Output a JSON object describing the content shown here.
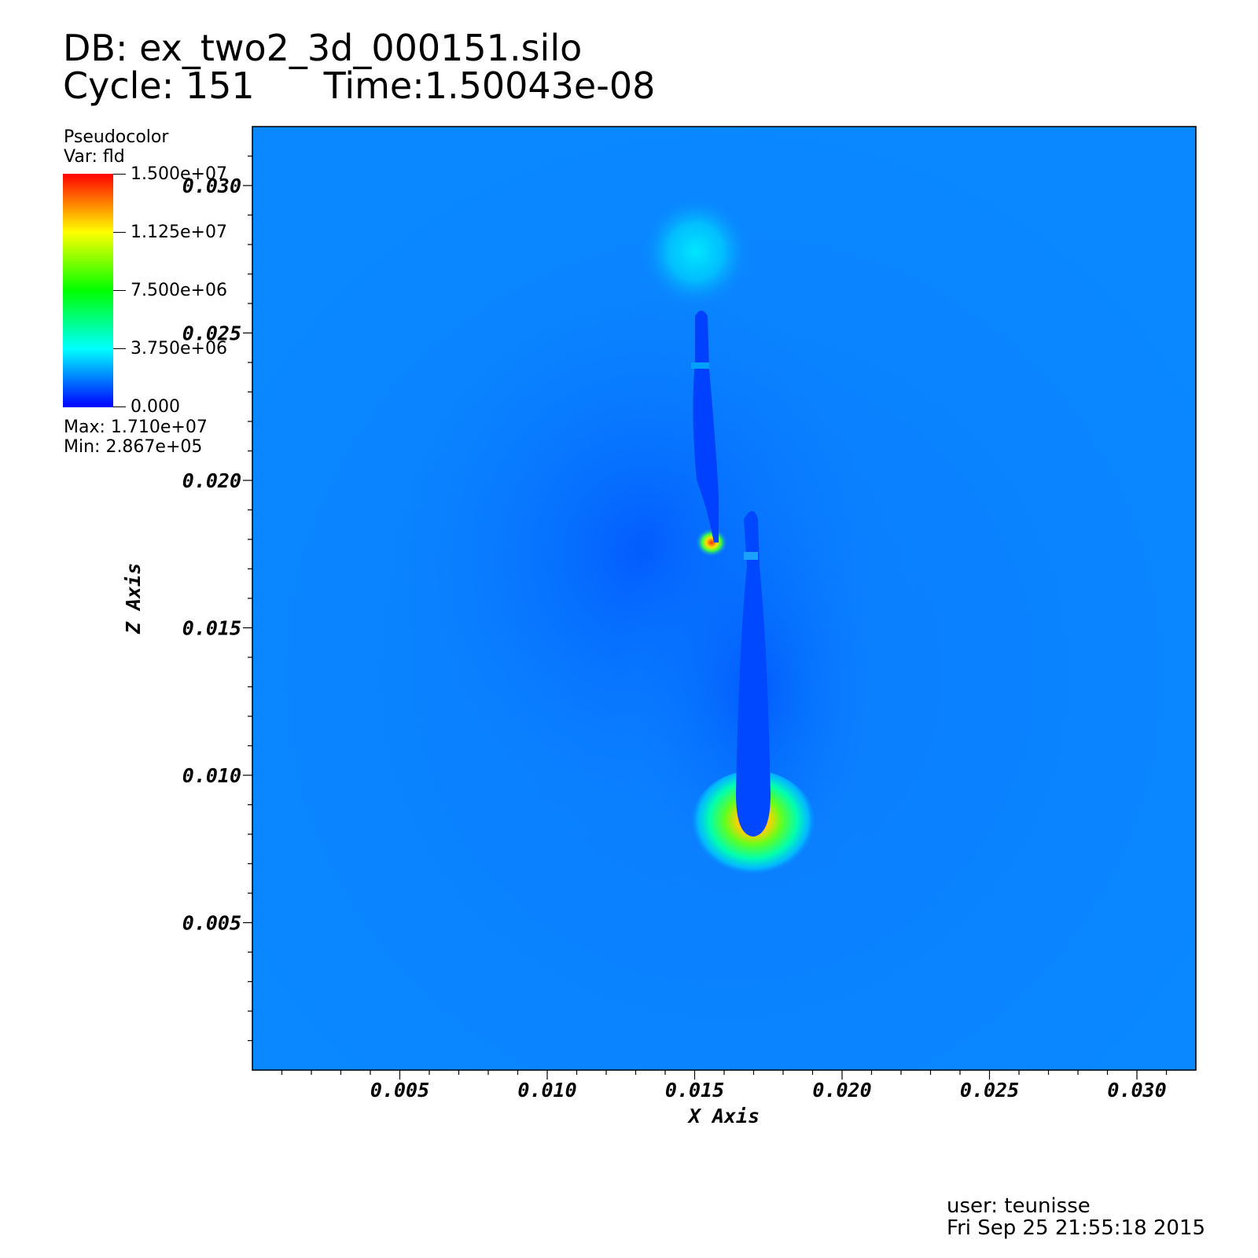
{
  "header": {
    "db_label": "DB: ex_two2_3d_000151.silo",
    "cycle_label": "Cycle: 151",
    "time_label": "Time:1.50043e-08"
  },
  "legend": {
    "plot_type": "Pseudocolor",
    "var_label": "Var: fld",
    "max_label": "Max:  1.710e+07",
    "min_label": "Min:  2.867e+05",
    "ticks": [
      "1.500e+07",
      "1.125e+07",
      "7.500e+06",
      "3.750e+06",
      "0.000"
    ],
    "colormap": [
      "#ff0000",
      "#ff8000",
      "#ffff00",
      "#00ff00",
      "#00ffff",
      "#0080ff",
      "#0000ff"
    ]
  },
  "footer": {
    "user_label": "user: teunisse",
    "date_label": "Fri Sep 25 21:55:18 2015"
  },
  "chart_data": {
    "type": "heatmap",
    "title": "",
    "variable": "fld",
    "xlabel": "X Axis",
    "ylabel": "Z Axis",
    "xlim": [
      0.0,
      0.032
    ],
    "ylim": [
      0.0,
      0.032
    ],
    "x_ticks": [
      "0.005",
      "0.010",
      "0.015",
      "0.020",
      "0.025",
      "0.030"
    ],
    "x_tick_values": [
      0.005,
      0.01,
      0.015,
      0.02,
      0.025,
      0.03
    ],
    "y_ticks": [
      "0.005",
      "0.010",
      "0.015",
      "0.020",
      "0.025",
      "0.030"
    ],
    "y_tick_values": [
      0.005,
      0.01,
      0.015,
      0.02,
      0.025,
      0.03
    ],
    "color_range": [
      0,
      15000000
    ],
    "background_color": "#0a82ff",
    "grid": false,
    "legend_position": "top-left"
  }
}
